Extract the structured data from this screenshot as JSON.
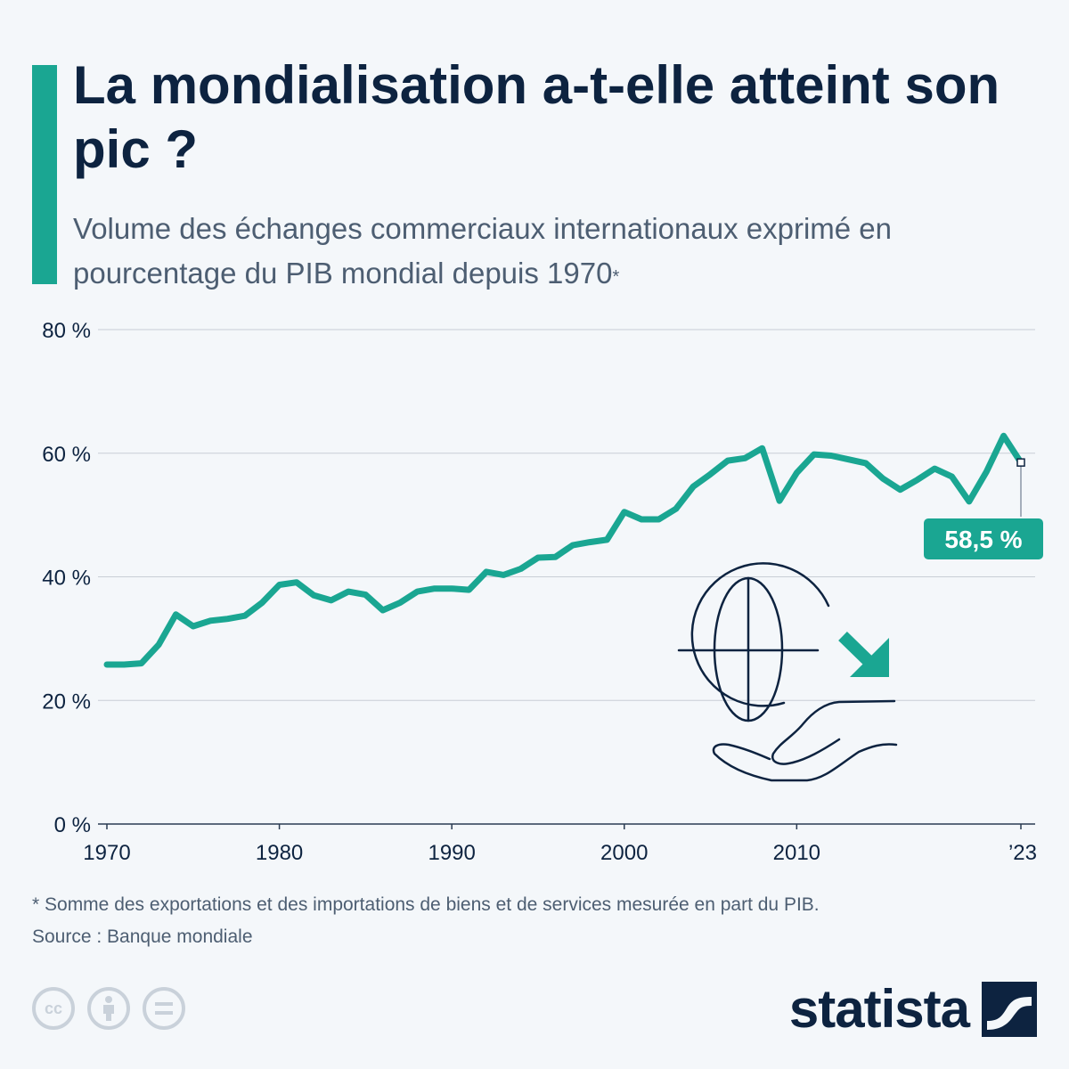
{
  "header": {
    "title": "La mondialisation a-t-elle atteint son pic ?",
    "subtitle": "Volume des échanges commerciaux internationaux exprimé en pourcentage du PIB mondial depuis 1970",
    "subtitle_mark": "*"
  },
  "chart_data": {
    "type": "line",
    "title": "",
    "xlabel": "",
    "ylabel": "",
    "x": [
      1970,
      1971,
      1972,
      1973,
      1974,
      1975,
      1976,
      1977,
      1978,
      1979,
      1980,
      1981,
      1982,
      1983,
      1984,
      1985,
      1986,
      1987,
      1988,
      1989,
      1990,
      1991,
      1992,
      1993,
      1994,
      1995,
      1996,
      1997,
      1998,
      1999,
      2000,
      2001,
      2002,
      2003,
      2004,
      2005,
      2006,
      2007,
      2008,
      2009,
      2010,
      2011,
      2012,
      2013,
      2014,
      2015,
      2016,
      2017,
      2018,
      2019,
      2020,
      2021,
      2022,
      2023
    ],
    "series": [
      {
        "values": [
          25.8,
          25.8,
          26.0,
          29.0,
          33.9,
          32.0,
          32.9,
          33.2,
          33.7,
          35.8,
          38.7,
          39.1,
          37.0,
          36.2,
          37.6,
          37.1,
          34.6,
          35.8,
          37.6,
          38.1,
          38.1,
          37.9,
          40.8,
          40.3,
          41.3,
          43.1,
          43.2,
          45.1,
          45.6,
          46.0,
          50.5,
          49.3,
          49.3,
          51.0,
          54.6,
          56.6,
          58.8,
          59.2,
          60.8,
          52.3,
          56.8,
          59.8,
          59.6,
          59.0,
          58.4,
          55.9,
          54.1,
          55.7,
          57.5,
          56.2,
          52.2,
          57.0,
          62.8,
          58.5
        ]
      }
    ],
    "ylim": [
      0,
      80
    ],
    "xlim": [
      1970,
      2023
    ],
    "y_ticks": [
      "0 %",
      "20 %",
      "40 %",
      "60 %",
      "80 %"
    ],
    "y_tick_values": [
      0,
      20,
      40,
      60,
      80
    ],
    "x_ticks": [
      "1970",
      "1980",
      "1990",
      "2000",
      "2010",
      "’23"
    ],
    "x_tick_values": [
      1970,
      1980,
      1990,
      2000,
      2010,
      2023
    ],
    "annotation": {
      "x": 2023,
      "y": 58.5,
      "text": "58,5 %"
    },
    "grid": true,
    "line_color": "#1aa692",
    "grid_color": "#c8ced6"
  },
  "footer": {
    "note": "* Somme des exportations et des importations de biens et de services mesurée en part du PIB.",
    "source": "Source : Banque mondiale",
    "brand": "statista",
    "cc_icons": [
      "cc-icon",
      "by-icon",
      "nd-icon"
    ]
  }
}
